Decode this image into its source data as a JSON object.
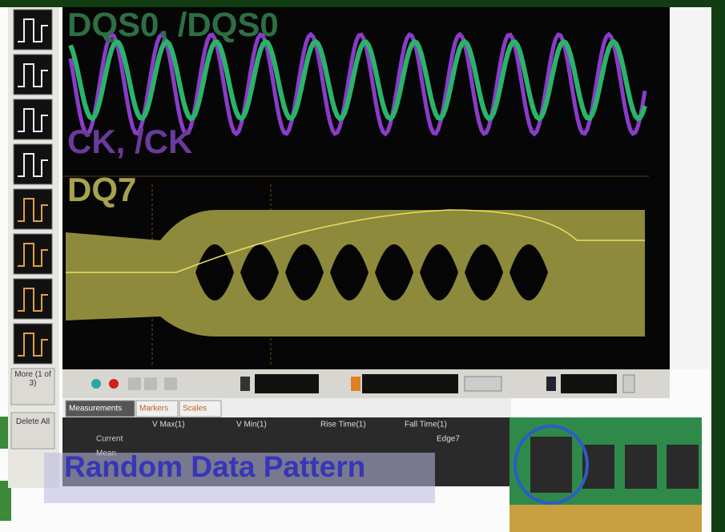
{
  "scope": {
    "traces": {
      "dqs": "DQS0, /DQS0",
      "ck": "CK, /CK",
      "dq": "DQ7"
    },
    "side_buttons": {
      "more": "More (1 of 3)",
      "delete": "Delete All"
    },
    "tabs": [
      "Measurements",
      "Markers",
      "Scales"
    ],
    "table": {
      "headers": [
        "V Max(1)",
        "V Min(1)",
        "Rise Time(1)",
        "Fall Time(1)"
      ],
      "rows": [
        "Current",
        "Mean"
      ],
      "source": "Edge7"
    },
    "caption": "Random Data Pattern"
  }
}
